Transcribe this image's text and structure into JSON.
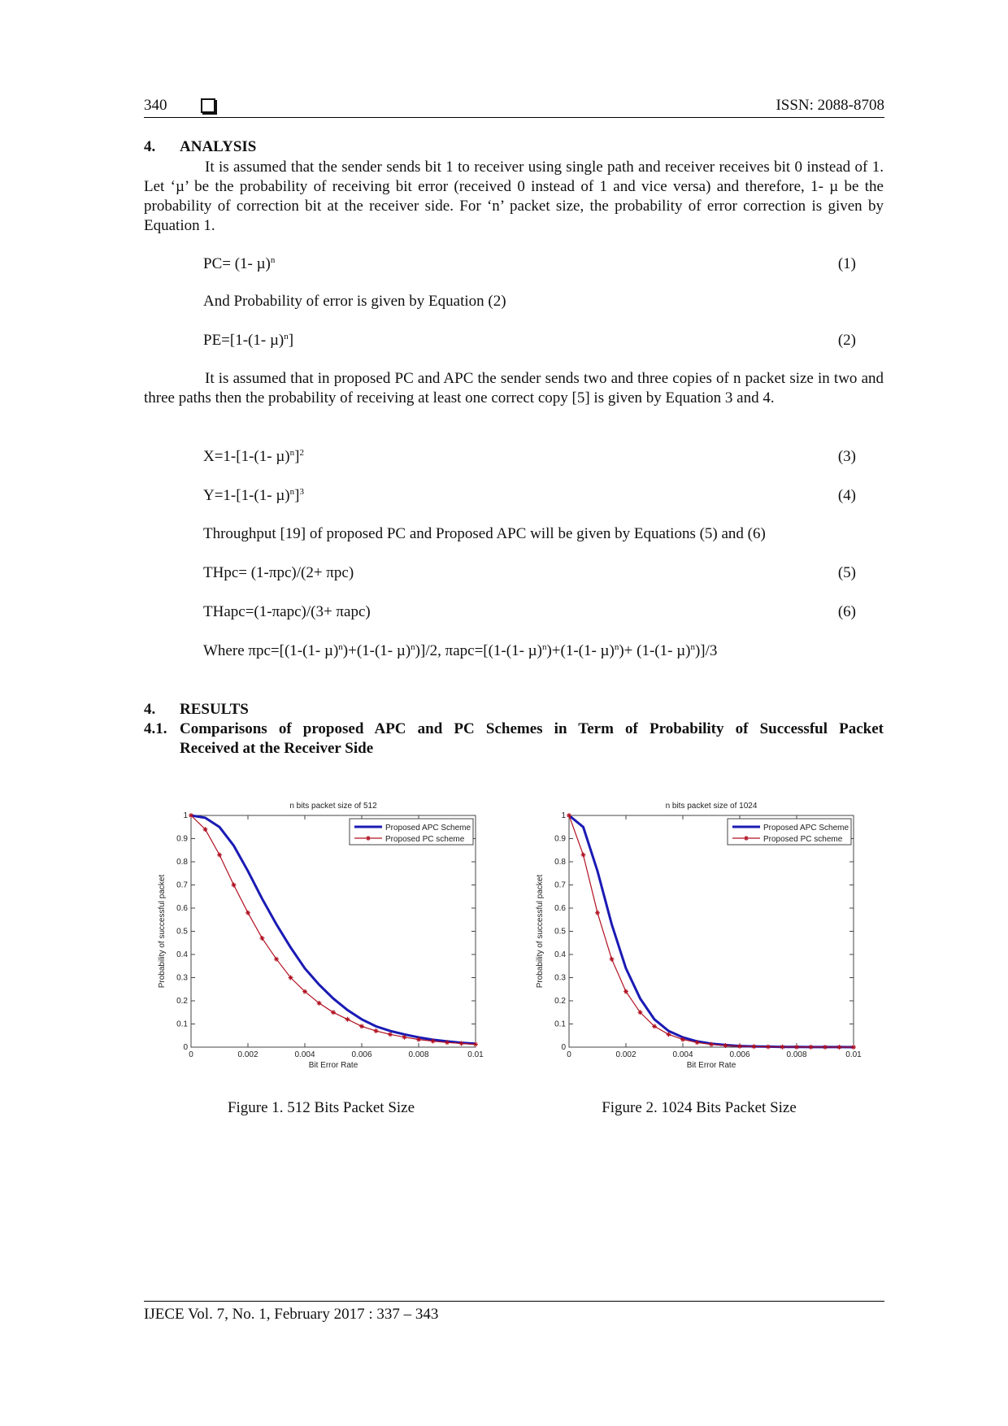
{
  "header": {
    "page_number": "340",
    "issn": "ISSN: 2088-8708"
  },
  "analysis": {
    "number": "4.",
    "title": "ANALYSIS",
    "para1": "It is assumed that the sender sends bit 1 to receiver using single path and receiver receives bit 0 instead of 1. Let ‘µ’ be the probability of receiving bit error (received 0 instead of 1 and vice versa) and therefore, 1- µ be the probability of correction bit at the receiver side. For ‘n’ packet size, the probability of error correction is given by Equation 1.",
    "eq1_base": "PC= (1- µ)",
    "eq1_sup": "n",
    "eq1_num": "(1)",
    "line2": "And Probability of error is given by Equation (2)",
    "eq2_a": "PE=[1-(1- µ)",
    "eq2_sup": "n",
    "eq2_b": "]",
    "eq2_num": "(2)",
    "para2": "It is assumed that in proposed PC and APC the sender sends two and three copies of n packet size in two and three paths then the probability of receiving at least one correct copy [5] is given by Equation 3 and 4.",
    "eq3_a": "X=1-[1-(1- µ)",
    "eq3_sup1": "n",
    "eq3_b": "]",
    "eq3_sup2": "2",
    "eq3_num": "(3)",
    "eq4_a": "Y=1-[1-(1- µ)",
    "eq4_sup1": "n",
    "eq4_b": "]",
    "eq4_sup2": "3",
    "eq4_num": "(4)",
    "line3": "Throughput [19] of proposed PC and Proposed APC will be given by Equations (5) and (6)",
    "eq5": "THpc= (1-πpc)/(2+ πpc)",
    "eq5_num": "(5)",
    "eq6": "THapc=(1-πapc)/(3+ πapc)",
    "eq6_num": "(6)",
    "where_a": "Where πpc=[(1-(1- µ)",
    "where_b": ")+(1-(1- µ)",
    "where_c": ")]/2, πapc=[(1-(1- µ)",
    "where_d": ")+(1-(1- µ)",
    "where_e": ")+ (1-(1- µ)",
    "where_f": ")]/3",
    "where_sup": "n"
  },
  "results": {
    "number": "4.",
    "title": "RESULTS",
    "sub_number": "4.1.",
    "sub_title_line1": "Comparisons of proposed APC and PC Schemes in Term of Probability of Successful Packet",
    "sub_title_line2": "Received at the Receiver Side"
  },
  "figures": [
    {
      "caption": "Figure 1. 512 Bits Packet Size"
    },
    {
      "caption": "Figure 2. 1024 Bits Packet Size"
    }
  ],
  "footer": {
    "text": "IJECE Vol. 7, No. 1, February 2017 : 337 – 343"
  },
  "chart_data": [
    {
      "type": "line",
      "title": "n bits packet size of 512",
      "xlabel": "Bit Error Rate",
      "ylabel": "Probability of successful packet",
      "xlim": [
        0,
        0.01
      ],
      "ylim": [
        0,
        1
      ],
      "xticks": [
        "0",
        "0.002",
        "0.004",
        "0.006",
        "0.008",
        "0.01"
      ],
      "yticks": [
        "0",
        "0.1",
        "0.2",
        "0.3",
        "0.4",
        "0.5",
        "0.6",
        "0.7",
        "0.8",
        "0.9",
        "1"
      ],
      "legend_position": "top-right",
      "x": [
        0,
        0.0005,
        0.001,
        0.0015,
        0.002,
        0.0025,
        0.003,
        0.0035,
        0.004,
        0.0045,
        0.005,
        0.0055,
        0.006,
        0.0065,
        0.007,
        0.0075,
        0.008,
        0.0085,
        0.009,
        0.0095,
        0.01
      ],
      "series": [
        {
          "name": "Proposed APC Scheme",
          "color": "#1a1ab4",
          "marker": "none",
          "values": [
            1.0,
            0.99,
            0.95,
            0.87,
            0.76,
            0.64,
            0.53,
            0.43,
            0.34,
            0.27,
            0.21,
            0.16,
            0.12,
            0.09,
            0.07,
            0.055,
            0.042,
            0.032,
            0.025,
            0.019,
            0.015
          ]
        },
        {
          "name": "Proposed PC scheme",
          "color": "#b01020",
          "marker": "star",
          "values": [
            1.0,
            0.94,
            0.83,
            0.7,
            0.58,
            0.47,
            0.38,
            0.3,
            0.24,
            0.19,
            0.15,
            0.12,
            0.09,
            0.07,
            0.055,
            0.043,
            0.033,
            0.026,
            0.02,
            0.016,
            0.012
          ]
        }
      ]
    },
    {
      "type": "line",
      "title": "n bits packet size of 1024",
      "xlabel": "Bit Error Rate",
      "ylabel": "Probability of successful packet",
      "xlim": [
        0,
        0.01
      ],
      "ylim": [
        0,
        1
      ],
      "xticks": [
        "0",
        "0.002",
        "0.004",
        "0.006",
        "0.008",
        "0.01"
      ],
      "yticks": [
        "0",
        "0.1",
        "0.2",
        "0.3",
        "0.4",
        "0.5",
        "0.6",
        "0.7",
        "0.8",
        "0.9",
        "1"
      ],
      "legend_position": "top-right",
      "x": [
        0,
        0.0005,
        0.001,
        0.0015,
        0.002,
        0.0025,
        0.003,
        0.0035,
        0.004,
        0.0045,
        0.005,
        0.0055,
        0.006,
        0.0065,
        0.007,
        0.0075,
        0.008,
        0.0085,
        0.009,
        0.0095,
        0.01
      ],
      "series": [
        {
          "name": "Proposed APC Scheme",
          "color": "#1a1ab4",
          "marker": "none",
          "values": [
            1.0,
            0.95,
            0.76,
            0.53,
            0.34,
            0.21,
            0.12,
            0.07,
            0.042,
            0.025,
            0.015,
            0.009,
            0.005,
            0.003,
            0.002,
            0.001,
            0.0007,
            0.0004,
            0.0003,
            0.0002,
            0.0001
          ]
        },
        {
          "name": "Proposed PC scheme",
          "color": "#b01020",
          "marker": "star",
          "values": [
            1.0,
            0.83,
            0.58,
            0.38,
            0.24,
            0.15,
            0.09,
            0.055,
            0.033,
            0.02,
            0.012,
            0.007,
            0.004,
            0.0025,
            0.0015,
            0.0009,
            0.0005,
            0.0003,
            0.0002,
            0.0001,
            0.0001
          ]
        }
      ]
    }
  ]
}
